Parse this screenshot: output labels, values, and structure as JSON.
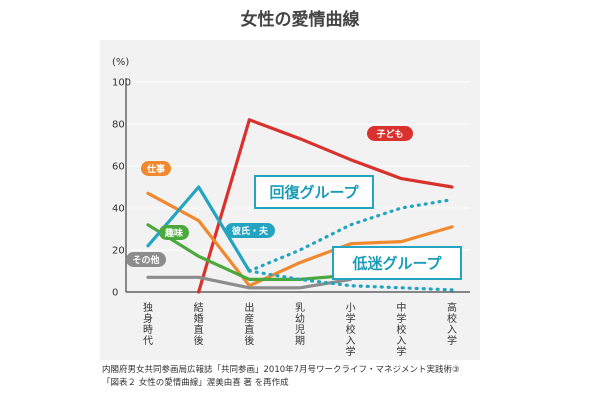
{
  "chart_data": {
    "type": "line",
    "title": "女性の愛情曲線",
    "unit": "(%)",
    "ylim": [
      0,
      100
    ],
    "yticks": [
      0,
      20,
      40,
      60,
      80,
      100
    ],
    "categories": [
      "独身時代",
      "結婚直後",
      "出産直後",
      "乳幼児期",
      "小学校入学",
      "中学校入学",
      "高校入学"
    ],
    "series": [
      {
        "name": "子ども",
        "color": "#d9322e",
        "style": "solid",
        "x": [
          1,
          2,
          3,
          4,
          5,
          6
        ],
        "values": [
          0,
          82,
          73,
          63,
          54,
          50
        ]
      },
      {
        "name": "仕事",
        "color": "#f0892e",
        "style": "solid",
        "x": [
          0,
          1,
          2,
          3,
          4,
          5,
          6
        ],
        "values": [
          47,
          34,
          3,
          14,
          23,
          24,
          31
        ]
      },
      {
        "name": "趣味",
        "color": "#4ba83c",
        "style": "solid",
        "x": [
          0,
          1,
          2,
          3,
          4
        ],
        "values": [
          32,
          17,
          6,
          6,
          8
        ]
      },
      {
        "name": "その他",
        "color": "#8c8c8c",
        "style": "solid",
        "x": [
          0,
          1,
          2,
          3,
          4
        ],
        "values": [
          7,
          7,
          2,
          2,
          6
        ]
      },
      {
        "name": "彼氏・夫",
        "color": "#25a4c2",
        "style": "solid",
        "x": [
          0,
          1,
          2
        ],
        "values": [
          22,
          50,
          10
        ]
      },
      {
        "name": "回復グループ",
        "color": "#25a4c2",
        "style": "dotted",
        "x": [
          2,
          3,
          4,
          5,
          6
        ],
        "values": [
          10,
          20,
          32,
          40,
          44
        ]
      },
      {
        "name": "低迷グループ",
        "color": "#25a4c2",
        "style": "dotted",
        "x": [
          2,
          3,
          4,
          5,
          6
        ],
        "values": [
          10,
          6,
          3,
          2,
          1
        ]
      }
    ],
    "labels": [
      {
        "text": "子ども",
        "series": 0,
        "kind": "pill"
      },
      {
        "text": "仕事",
        "series": 1,
        "kind": "pill"
      },
      {
        "text": "趣味",
        "series": 2,
        "kind": "pill"
      },
      {
        "text": "その他",
        "series": 3,
        "kind": "pill"
      },
      {
        "text": "彼氏・夫",
        "series": 4,
        "kind": "pill"
      },
      {
        "text": "回復グループ",
        "series": 5,
        "kind": "box"
      },
      {
        "text": "低迷グループ",
        "series": 6,
        "kind": "box"
      }
    ],
    "source": [
      "内閣府男女共同参画局広報誌「共同参画」2010年7月号ワークライフ・マネジメント実践術③",
      "「図表２ 女性の愛情曲線」渥美由喜 著 を再作成"
    ]
  }
}
